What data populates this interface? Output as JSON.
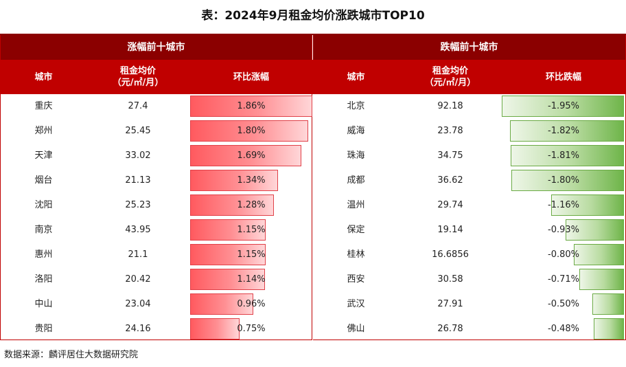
{
  "title": "表：2024年9月租金均价涨跌城市TOP10",
  "rise": {
    "group_label": "涨幅前十城市",
    "headers": {
      "city": "城市",
      "price_line1": "租金均价",
      "price_line2": "（元/㎡/月）",
      "change": "环比涨幅"
    },
    "rows": [
      {
        "city": "重庆",
        "price": "27.4",
        "pct_label": "1.86%",
        "pct": 1.86
      },
      {
        "city": "郑州",
        "price": "25.45",
        "pct_label": "1.80%",
        "pct": 1.8
      },
      {
        "city": "天津",
        "price": "33.02",
        "pct_label": "1.69%",
        "pct": 1.69
      },
      {
        "city": "烟台",
        "price": "21.13",
        "pct_label": "1.34%",
        "pct": 1.34
      },
      {
        "city": "沈阳",
        "price": "25.23",
        "pct_label": "1.28%",
        "pct": 1.28
      },
      {
        "city": "南京",
        "price": "43.95",
        "pct_label": "1.15%",
        "pct": 1.15
      },
      {
        "city": "惠州",
        "price": "21.1",
        "pct_label": "1.15%",
        "pct": 1.15
      },
      {
        "city": "洛阳",
        "price": "20.42",
        "pct_label": "1.14%",
        "pct": 1.14
      },
      {
        "city": "中山",
        "price": "23.04",
        "pct_label": "0.96%",
        "pct": 0.96
      },
      {
        "city": "贵阳",
        "price": "24.16",
        "pct_label": "0.75%",
        "pct": 0.75
      }
    ]
  },
  "fall": {
    "group_label": "跌幅前十城市",
    "headers": {
      "city": "城市",
      "price_line1": "租金均价",
      "price_line2": "（元/㎡/月）",
      "change": "环比跌幅"
    },
    "rows": [
      {
        "city": "北京",
        "price": "92.18",
        "pct_label": "-1.95%",
        "pct": -1.95
      },
      {
        "city": "威海",
        "price": "23.78",
        "pct_label": "-1.82%",
        "pct": -1.82
      },
      {
        "city": "珠海",
        "price": "34.75",
        "pct_label": "-1.81%",
        "pct": -1.81
      },
      {
        "city": "成都",
        "price": "36.62",
        "pct_label": "-1.80%",
        "pct": -1.8
      },
      {
        "city": "温州",
        "price": "29.74",
        "pct_label": "-1.16%",
        "pct": -1.16
      },
      {
        "city": "保定",
        "price": "19.14",
        "pct_label": "-0.93%",
        "pct": -0.93
      },
      {
        "city": "桂林",
        "price": "16.6856",
        "pct_label": "-0.80%",
        "pct": -0.8
      },
      {
        "city": "西安",
        "price": "30.58",
        "pct_label": "-0.71%",
        "pct": -0.71
      },
      {
        "city": "武汉",
        "price": "27.91",
        "pct_label": "-0.50%",
        "pct": -0.5
      },
      {
        "city": "佛山",
        "price": "26.78",
        "pct_label": "-0.48%",
        "pct": -0.48
      }
    ]
  },
  "source": "数据来源：麟评居住大数据研究院",
  "colors": {
    "header_dark": "#8b0000",
    "header_red": "#c00000",
    "bar_up": "#ff5a5f",
    "bar_down": "#6fb54a"
  }
}
